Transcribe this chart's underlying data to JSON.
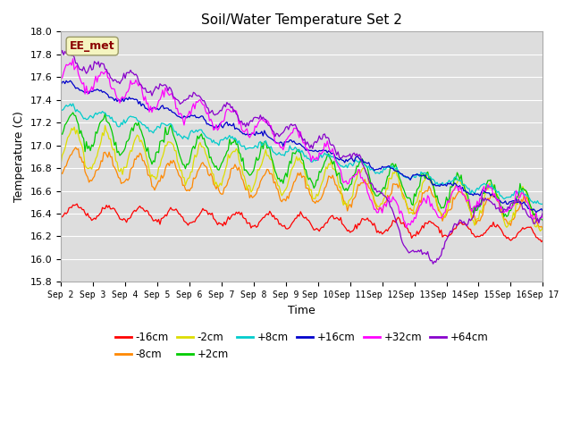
{
  "title": "Soil/Water Temperature Set 2",
  "xlabel": "Time",
  "ylabel": "Temperature (C)",
  "ylim": [
    15.8,
    18.0
  ],
  "xlim": [
    0,
    360
  ],
  "annotation": "EE_met",
  "fig_bg_color": "#ffffff",
  "plot_bg_color": "#dddddd",
  "grid_color": "#ffffff",
  "series": [
    {
      "label": "-16cm",
      "color": "#ff0000"
    },
    {
      "label": "-8cm",
      "color": "#ff8800"
    },
    {
      "label": "-2cm",
      "color": "#dddd00"
    },
    {
      "label": "+2cm",
      "color": "#00cc00"
    },
    {
      "label": "+8cm",
      "color": "#00cccc"
    },
    {
      "label": "+16cm",
      "color": "#0000cc"
    },
    {
      "label": "+32cm",
      "color": "#ff00ff"
    },
    {
      "label": "+64cm",
      "color": "#8800cc"
    }
  ],
  "tick_labels": [
    "Sep 2",
    "Sep 3",
    "Sep 4",
    "Sep 5",
    "Sep 6",
    "Sep 7",
    "Sep 8",
    "Sep 9",
    "Sep 10",
    "Sep 11",
    "Sep 12",
    "Sep 13",
    "Sep 14",
    "Sep 15",
    "Sep 16",
    "Sep 17"
  ],
  "tick_positions": [
    0,
    24,
    48,
    72,
    96,
    120,
    144,
    168,
    192,
    216,
    240,
    264,
    288,
    312,
    336,
    360
  ],
  "yticks": [
    15.8,
    16.0,
    16.2,
    16.4,
    16.6,
    16.8,
    17.0,
    17.2,
    17.4,
    17.6,
    17.8,
    18.0
  ]
}
